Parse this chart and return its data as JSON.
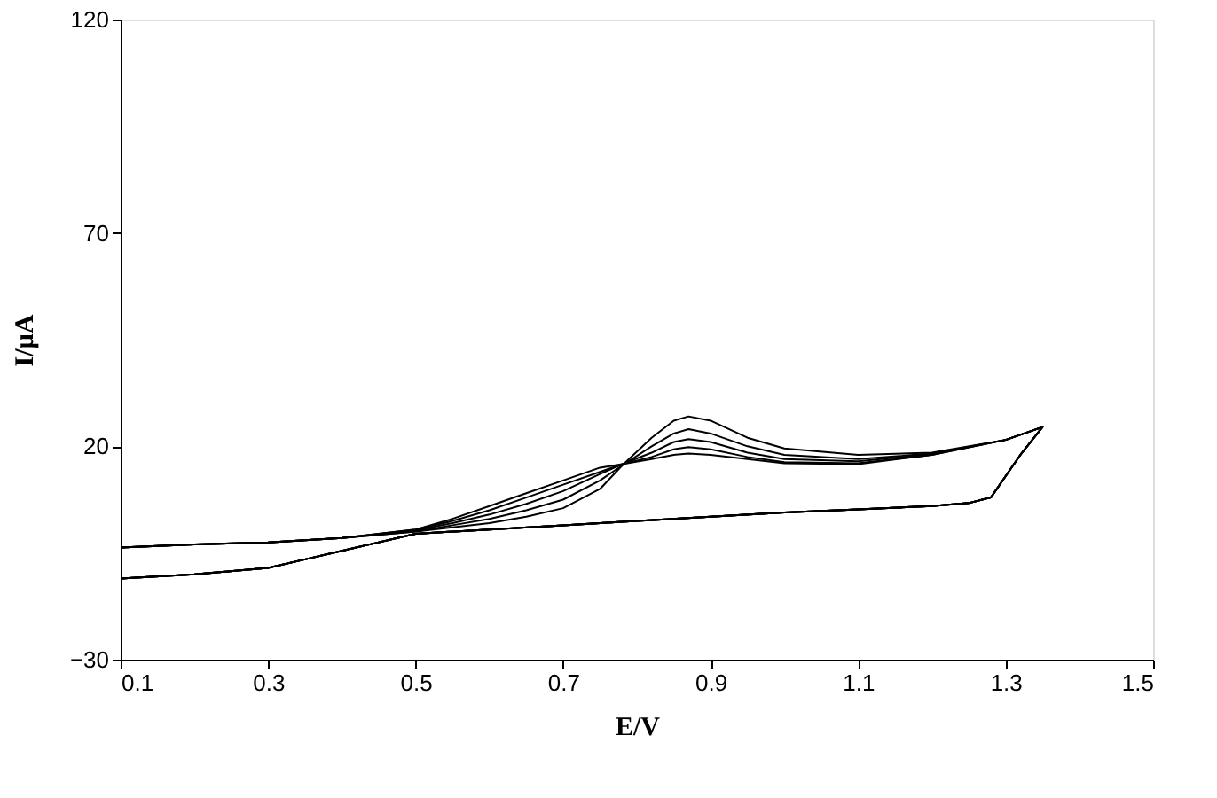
{
  "chart_data": {
    "type": "line",
    "xlabel": "E/V",
    "ylabel": "I/µA",
    "xlim": [
      0.1,
      1.5
    ],
    "xticks": [
      0.1,
      0.3,
      0.5,
      0.7,
      0.9,
      1.1,
      1.3,
      1.5
    ],
    "ylim": [
      -30,
      120
    ],
    "yticks": [
      -30,
      20,
      70,
      120
    ],
    "grid": false,
    "legend": false,
    "marker": "none",
    "line_style": "solid",
    "x": [
      0.1,
      0.2,
      0.3,
      0.4,
      0.5,
      0.55,
      0.6,
      0.65,
      0.7,
      0.75,
      0.78,
      0.82,
      0.85,
      0.87,
      0.9,
      0.95,
      1.0,
      1.1,
      1.2,
      1.3,
      1.35,
      1.32,
      1.3,
      1.28,
      1.25,
      1.2,
      1.1,
      1.0,
      0.9,
      0.8,
      0.7,
      0.6,
      0.5,
      0.45,
      0.4,
      0.35,
      0.3,
      0.2,
      0.1
    ],
    "series": [
      {
        "color": "#000000",
        "values": [
          -3.7,
          -3,
          -2.5,
          -1.5,
          0,
          1,
          2,
          3.5,
          5.5,
          10,
          15.5,
          22,
          26,
          27,
          26,
          22,
          19.5,
          18,
          18.5,
          21.5,
          24.5,
          18,
          13,
          8,
          6.7,
          6,
          5.2,
          4.5,
          3.5,
          2.5,
          1.5,
          0.5,
          -0.5,
          -2.5,
          -4.5,
          -6.5,
          -8.5,
          -10,
          -11
        ]
      },
      {
        "color": "#000000",
        "values": [
          -3.7,
          -3,
          -2.5,
          -1.5,
          0,
          1.5,
          3,
          5,
          7.5,
          12,
          15.5,
          20,
          23,
          24,
          23,
          20,
          18,
          17,
          18.3,
          21.5,
          24.5,
          18,
          13,
          8,
          6.7,
          6,
          5.2,
          4.5,
          3.5,
          2.5,
          1.5,
          0.5,
          -0.5,
          -2.5,
          -4.5,
          -6.5,
          -8.5,
          -10,
          -11
        ]
      },
      {
        "color": "#000000",
        "values": [
          -3.7,
          -3,
          -2.5,
          -1.5,
          0.3,
          2,
          4,
          6.5,
          9.5,
          13.5,
          15.8,
          18.5,
          21,
          21.7,
          21,
          18.5,
          17,
          16.5,
          18.2,
          21.5,
          24.5,
          18,
          13,
          8,
          6.7,
          6,
          5.2,
          4.5,
          3.5,
          2.5,
          1.5,
          0.5,
          -0.5,
          -2.5,
          -4.5,
          -6.5,
          -8.5,
          -10,
          -11
        ]
      },
      {
        "color": "#000000",
        "values": [
          -3.7,
          -3,
          -2.5,
          -1.5,
          0.5,
          2.5,
          5,
          8,
          11,
          14,
          15.8,
          17.5,
          19.3,
          19.8,
          19.3,
          17.5,
          16.3,
          16,
          18,
          21.5,
          24.5,
          18,
          13,
          8,
          6.7,
          6,
          5.2,
          4.5,
          3.5,
          2.5,
          1.5,
          0.5,
          -0.5,
          -2.5,
          -4.5,
          -6.5,
          -8.5,
          -10,
          -11
        ]
      },
      {
        "color": "#000000",
        "values": [
          -3.7,
          -3,
          -2.5,
          -1.5,
          0.5,
          3,
          6,
          9,
          12,
          15,
          15.8,
          17,
          18,
          18.3,
          18,
          17,
          16,
          15.8,
          18,
          21.5,
          24.5,
          18,
          13,
          8,
          6.7,
          6,
          5.2,
          4.5,
          3.5,
          2.5,
          1.5,
          0.5,
          -0.5,
          -2.5,
          -4.5,
          -6.5,
          -8.5,
          -10,
          -11
        ]
      }
    ]
  }
}
